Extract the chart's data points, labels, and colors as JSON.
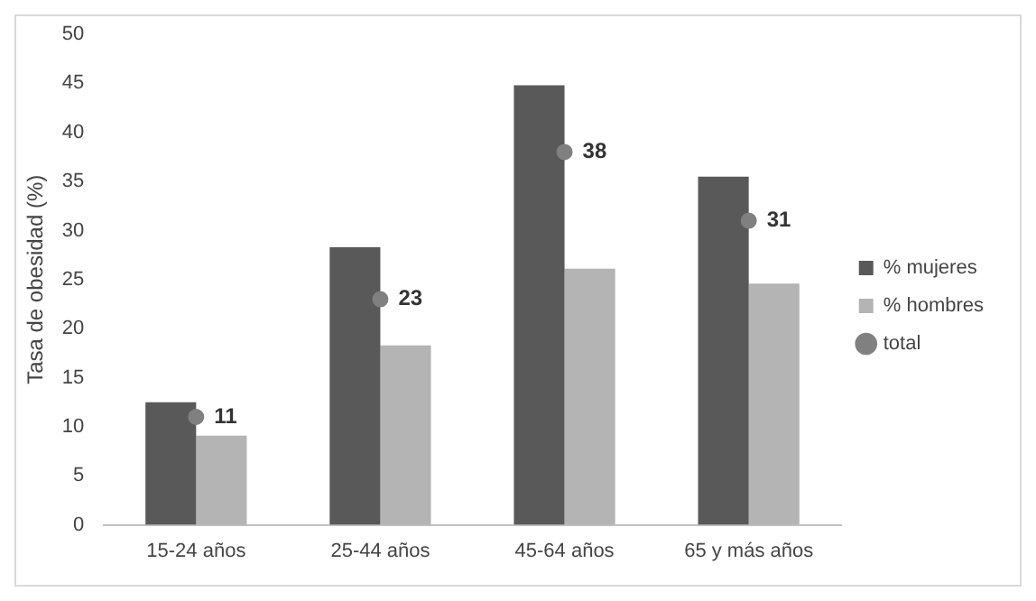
{
  "chart_data": {
    "type": "bar",
    "ylabel": "Tasa de obesidad (%)",
    "categories": [
      "15-24 años",
      "25-44 años",
      "45-64 años",
      "65 y más años"
    ],
    "series": [
      {
        "name": "% mujeres",
        "color": "#595959",
        "values": [
          12.5,
          28.3,
          44.8,
          35.5
        ]
      },
      {
        "name": "% hombres",
        "color": "#b4b4b4",
        "values": [
          9.1,
          18.3,
          26.1,
          24.6
        ]
      },
      {
        "name": "total",
        "type": "scatter",
        "color": "#808080",
        "x": [
          "15-24 años",
          "25-44 años",
          "45-64 años",
          "65 y más años"
        ],
        "values": [
          11,
          23,
          38,
          31
        ],
        "value_labels": [
          "11",
          "23",
          "38",
          "31"
        ]
      }
    ],
    "ylim": [
      0,
      50
    ],
    "yticks": [
      0,
      5,
      10,
      15,
      20,
      25,
      30,
      35,
      40,
      45,
      50
    ],
    "grid": false,
    "legend": "right",
    "marker": "circle"
  }
}
